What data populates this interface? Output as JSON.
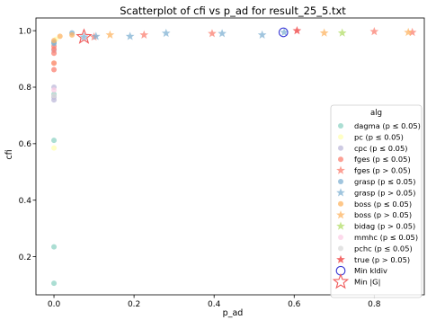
{
  "chart_data": {
    "type": "scatter",
    "title": "Scatterplot of cfi vs p_ad for result_25_5.txt",
    "xlabel": "p_ad",
    "ylabel": "cfi",
    "xlim": [
      -0.045,
      0.925
    ],
    "ylim": [
      0.065,
      1.045
    ],
    "xticks": [
      0.0,
      0.2,
      0.4,
      0.6,
      0.8
    ],
    "xtick_labels": [
      "0.0",
      "0.2",
      "0.4",
      "0.6",
      "0.8"
    ],
    "yticks": [
      0.2,
      0.4,
      0.6,
      0.8,
      1.0
    ],
    "ytick_labels": [
      "0.2",
      "0.4",
      "0.6",
      "0.8",
      "1.0"
    ],
    "grid": false,
    "legend_title": "alg",
    "legend_position": "right",
    "series": [
      {
        "name": "dagma (p ≤ 0.05)",
        "marker": "circle",
        "color": "#8fd3c4",
        "points": [
          [
            0.0,
            0.106
          ],
          [
            0.0,
            0.235
          ],
          [
            0.0,
            0.612
          ],
          [
            0.0,
            0.775
          ]
        ]
      },
      {
        "name": "pc (p ≤ 0.05)",
        "marker": "circle",
        "color": "#ffffb3",
        "points": [
          [
            0.0,
            0.585
          ],
          [
            0.0,
            0.885
          ],
          [
            0.0,
            0.955
          ],
          [
            0.005,
            0.97
          ]
        ]
      },
      {
        "name": "cpc (p ≤ 0.05)",
        "marker": "circle",
        "color": "#bebada",
        "points": [
          [
            0.0,
            0.755
          ],
          [
            0.0,
            0.765
          ],
          [
            0.0,
            0.8
          ],
          [
            0.0,
            0.93
          ]
        ]
      },
      {
        "name": "fges (p ≤ 0.05)",
        "marker": "circle",
        "color": "#fb8072",
        "points": [
          [
            0.0,
            0.862
          ],
          [
            0.0,
            0.885
          ],
          [
            0.0,
            0.92
          ],
          [
            0.0,
            0.935
          ],
          [
            0.0,
            0.945
          ]
        ]
      },
      {
        "name": "fges (p > 0.05)",
        "marker": "star",
        "color": "#fb8072",
        "points": [
          [
            0.1,
            0.978
          ],
          [
            0.225,
            0.985
          ],
          [
            0.395,
            0.99
          ],
          [
            0.8,
            0.997
          ],
          [
            0.895,
            0.994
          ]
        ]
      },
      {
        "name": "grasp (p ≤ 0.05)",
        "marker": "circle",
        "color": "#80b1d3",
        "points": [
          [
            0.0,
            0.96
          ],
          [
            0.0,
            0.955
          ],
          [
            0.045,
            0.992
          ]
        ]
      },
      {
        "name": "grasp (p > 0.05)",
        "marker": "star",
        "color": "#80b1d3",
        "points": [
          [
            0.075,
            0.978
          ],
          [
            0.105,
            0.98
          ],
          [
            0.19,
            0.98
          ],
          [
            0.28,
            0.991
          ],
          [
            0.42,
            0.99
          ],
          [
            0.52,
            0.985
          ],
          [
            0.575,
            0.994
          ]
        ]
      },
      {
        "name": "boss (p ≤ 0.05)",
        "marker": "circle",
        "color": "#fdb462",
        "points": [
          [
            0.0,
            0.965
          ],
          [
            0.015,
            0.98
          ],
          [
            0.045,
            0.985
          ]
        ]
      },
      {
        "name": "boss (p > 0.05)",
        "marker": "star",
        "color": "#fdb462",
        "points": [
          [
            0.14,
            0.985
          ],
          [
            0.675,
            0.992
          ],
          [
            0.885,
            0.994
          ]
        ]
      },
      {
        "name": "bidag (p > 0.05)",
        "marker": "star",
        "color": "#b3de69",
        "points": [
          [
            0.72,
            0.992
          ]
        ]
      },
      {
        "name": "mmhc (p ≤ 0.05)",
        "marker": "circle",
        "color": "#fccde5",
        "points": [
          [
            0.0,
            0.79
          ]
        ]
      },
      {
        "name": "pchc (p ≤ 0.05)",
        "marker": "circle",
        "color": "#d9d9d9",
        "points": [
          [
            0.0,
            0.77
          ]
        ]
      },
      {
        "name": "true (p > 0.05)",
        "marker": "star",
        "color": "#ef3b3b",
        "points": [
          [
            0.607,
            1.0
          ]
        ]
      },
      {
        "name": "Min kldiv",
        "marker": "ring",
        "color": "#3b3bd6",
        "points": [
          [
            0.573,
            0.994
          ]
        ]
      },
      {
        "name": "Min |G|",
        "marker": "hollow-star",
        "color": "#f05a5a",
        "points": [
          [
            0.075,
            0.978
          ]
        ]
      }
    ]
  }
}
